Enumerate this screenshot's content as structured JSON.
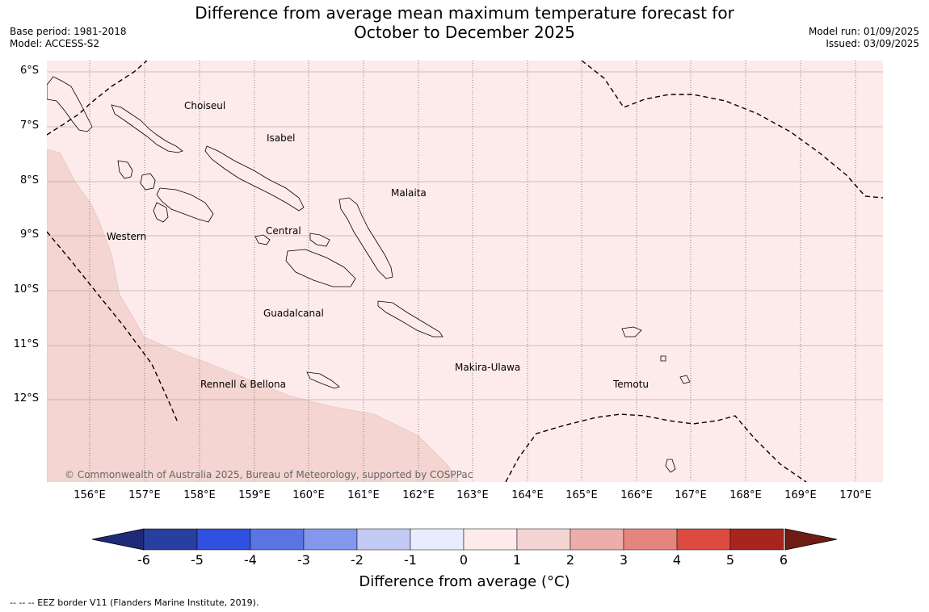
{
  "title_line1": "Difference from average mean maximum temperature forecast for",
  "title_line2": "October to December 2025",
  "base_period": "Base period: 1981-2018",
  "model": "Model: ACCESS-S2",
  "model_run": "Model run: 01/09/2025",
  "issued": "Issued: 03/09/2025",
  "lat_labels": [
    "6°S",
    "7°S",
    "8°S",
    "9°S",
    "10°S",
    "11°S",
    "12°S"
  ],
  "lon_labels": [
    "156°E",
    "157°E",
    "158°E",
    "159°E",
    "160°E",
    "161°E",
    "162°E",
    "163°E",
    "164°E",
    "165°E",
    "166°E",
    "167°E",
    "168°E",
    "169°E",
    "170°E"
  ],
  "places": {
    "choiseul": "Choiseul",
    "isabel": "Isabel",
    "malaita": "Malaita",
    "western": "Western",
    "central": "Central",
    "guadalcanal": "Guadalcanal",
    "makira": "Makira-Ulawa",
    "rennell": "Rennell & Bellona",
    "temotu": "Temotu"
  },
  "copyright": "© Commonwealth of Australia 2025, Bureau of Meteorology, supported by COSPPac",
  "colorbar": {
    "ticks": [
      "-6",
      "-5",
      "-4",
      "-3",
      "-2",
      "-1",
      "0",
      "1",
      "2",
      "3",
      "4",
      "5",
      "6"
    ],
    "colors": [
      "#27409f",
      "#3050e0",
      "#5a74e4",
      "#8398ec",
      "#c2caf4",
      "#e9ecfc",
      "#fcebea",
      "#f4d4d2",
      "#edadaa",
      "#e6857e",
      "#dc4a40",
      "#a8251f"
    ],
    "under_color": "#1e2a78",
    "over_color": "#6e1c14",
    "label": "Difference from average (°C)"
  },
  "map_colors": {
    "light": "#fcebea",
    "medium": "#f4d5d2"
  },
  "footnote": "-- -- -- EEZ border V11 (Flanders Marine Institute, 2019)."
}
